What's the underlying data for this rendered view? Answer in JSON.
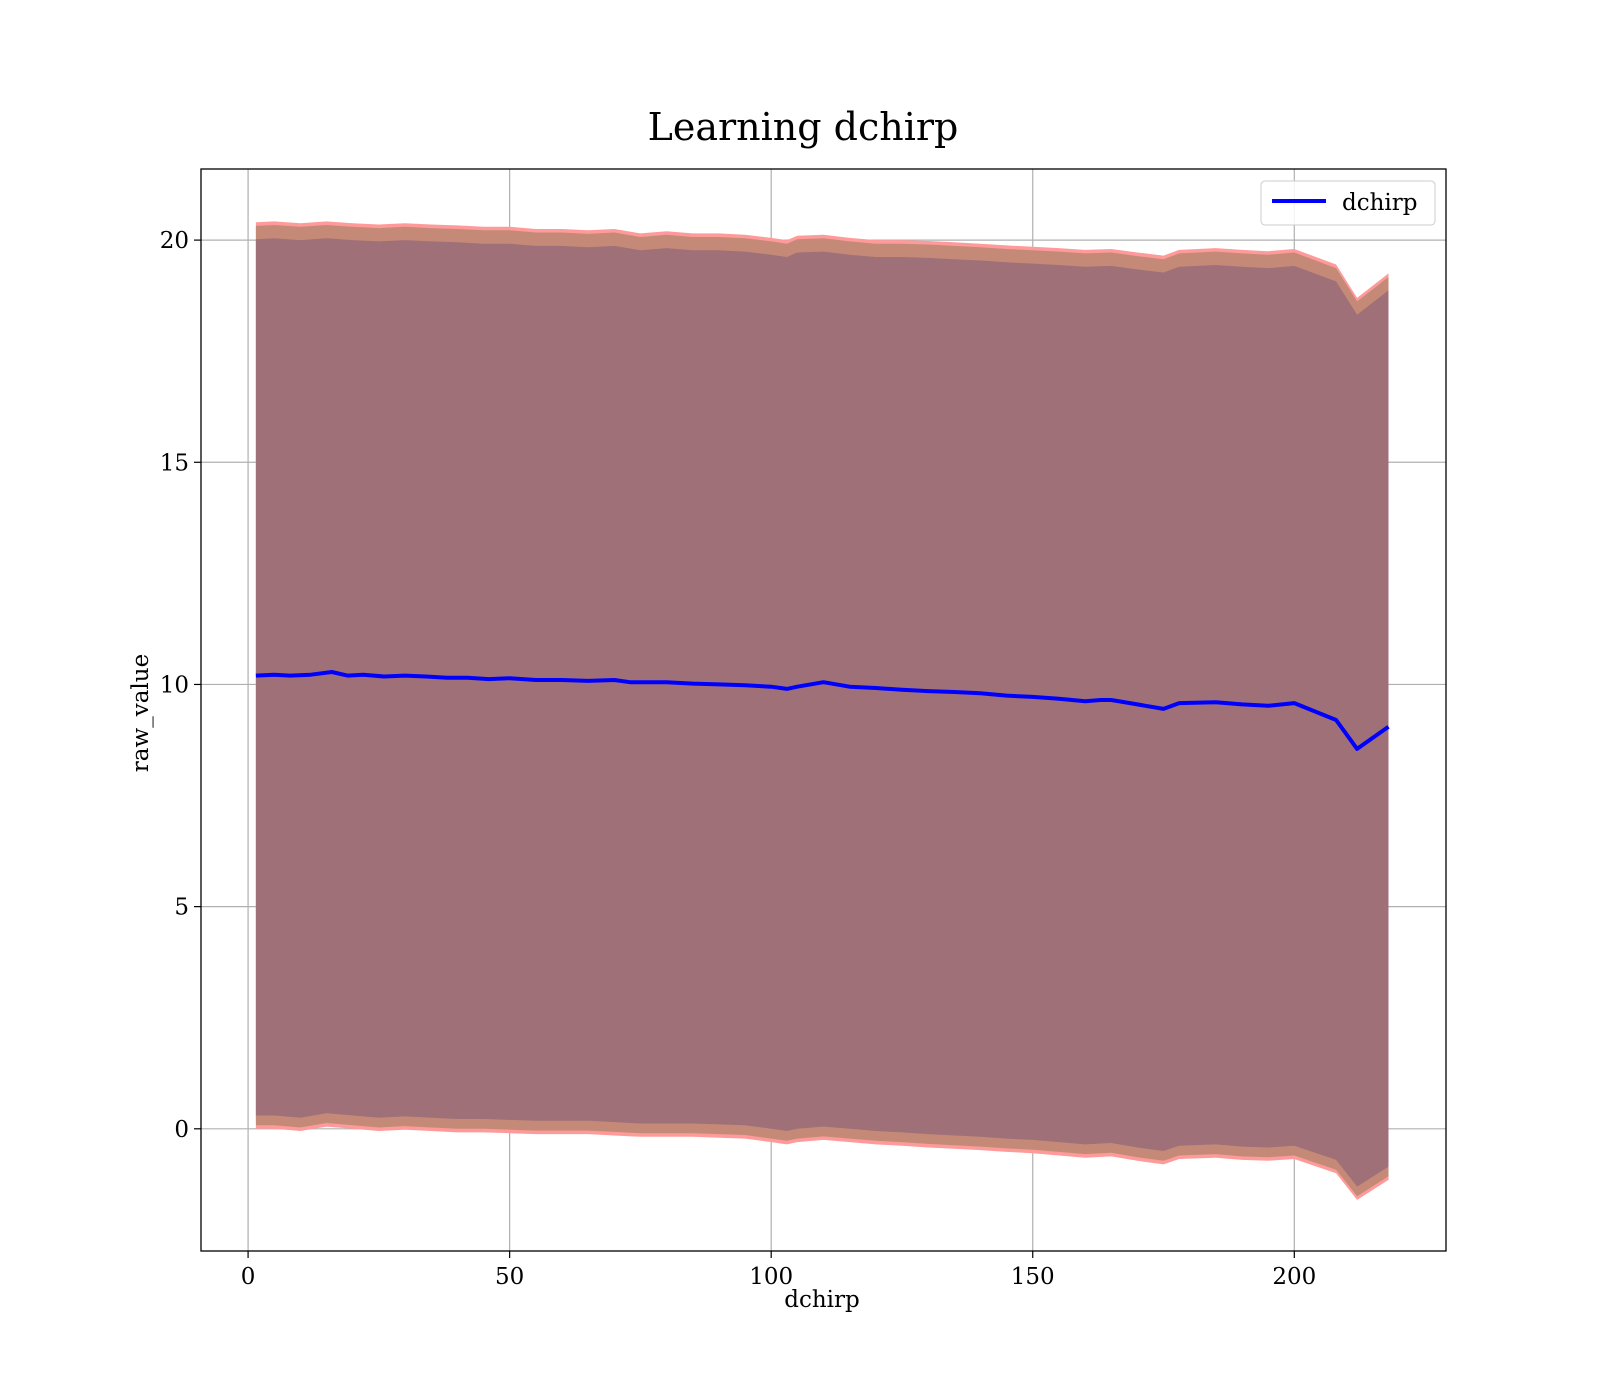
{
  "chart_data": {
    "type": "line",
    "title": "Learning dchirp",
    "xlabel": "dchirp",
    "ylabel": "raw_value",
    "xlim": [
      -9,
      229
    ],
    "ylim": [
      -2.75,
      21.6
    ],
    "grid": true,
    "legend_position": "top-right",
    "xticks": [
      0,
      50,
      100,
      150,
      200
    ],
    "yticks": [
      0,
      5,
      10,
      15,
      20
    ],
    "series": [
      {
        "name": "dchirp",
        "color": "#0000ff",
        "x": [
          1.5,
          5,
          8,
          12,
          16,
          19,
          22,
          26,
          30,
          34,
          38,
          42,
          46,
          50,
          55,
          60,
          65,
          70,
          73,
          75,
          80,
          85,
          90,
          95,
          100,
          103,
          105,
          110,
          115,
          120,
          125,
          130,
          135,
          140,
          145,
          150,
          155,
          160,
          163,
          165,
          170,
          175,
          178,
          185,
          190,
          195,
          200,
          208,
          212,
          218
        ],
        "y": [
          10.2,
          10.22,
          10.2,
          10.22,
          10.28,
          10.2,
          10.22,
          10.18,
          10.2,
          10.18,
          10.15,
          10.15,
          10.12,
          10.14,
          10.1,
          10.1,
          10.08,
          10.1,
          10.05,
          10.05,
          10.05,
          10.02,
          10.0,
          9.98,
          9.95,
          9.9,
          9.95,
          10.05,
          9.95,
          9.92,
          9.88,
          9.85,
          9.83,
          9.8,
          9.75,
          9.72,
          9.68,
          9.62,
          9.65,
          9.65,
          9.55,
          9.45,
          9.58,
          9.6,
          9.55,
          9.52,
          9.58,
          9.2,
          8.55,
          9.05
        ]
      }
    ],
    "bands": [
      {
        "name": "outer",
        "color": "#ff9a9a",
        "x": [
          1.5,
          5,
          10,
          15,
          20,
          25,
          30,
          35,
          40,
          45,
          50,
          55,
          60,
          65,
          70,
          75,
          80,
          85,
          90,
          95,
          100,
          103,
          105,
          110,
          115,
          120,
          125,
          130,
          135,
          140,
          145,
          150,
          155,
          160,
          165,
          170,
          175,
          178,
          185,
          190,
          195,
          200,
          208,
          212,
          218
        ],
        "upper": [
          20.4,
          20.42,
          20.38,
          20.42,
          20.38,
          20.35,
          20.38,
          20.35,
          20.33,
          20.3,
          20.3,
          20.25,
          20.25,
          20.22,
          20.25,
          20.15,
          20.2,
          20.15,
          20.15,
          20.12,
          20.05,
          20.0,
          20.1,
          20.12,
          20.05,
          20.0,
          20.0,
          19.98,
          19.95,
          19.92,
          19.88,
          19.85,
          19.82,
          19.78,
          19.8,
          19.72,
          19.65,
          19.78,
          19.82,
          19.78,
          19.75,
          19.8,
          19.45,
          18.7,
          19.25
        ],
        "lower": [
          0.0,
          0.0,
          -0.05,
          0.05,
          0.0,
          -0.05,
          -0.02,
          -0.05,
          -0.08,
          -0.08,
          -0.1,
          -0.12,
          -0.12,
          -0.12,
          -0.15,
          -0.18,
          -0.18,
          -0.18,
          -0.2,
          -0.22,
          -0.3,
          -0.35,
          -0.3,
          -0.25,
          -0.3,
          -0.35,
          -0.38,
          -0.42,
          -0.45,
          -0.48,
          -0.52,
          -0.55,
          -0.6,
          -0.65,
          -0.62,
          -0.72,
          -0.8,
          -0.68,
          -0.65,
          -0.7,
          -0.72,
          -0.68,
          -1.0,
          -1.6,
          -1.15
        ]
      },
      {
        "name": "middle",
        "color": "#c58a77",
        "x": [
          1.5,
          5,
          10,
          15,
          20,
          25,
          30,
          35,
          40,
          45,
          50,
          55,
          60,
          65,
          70,
          75,
          80,
          85,
          90,
          95,
          100,
          103,
          105,
          110,
          115,
          120,
          125,
          130,
          135,
          140,
          145,
          150,
          155,
          160,
          165,
          170,
          175,
          178,
          185,
          190,
          195,
          200,
          208,
          212,
          218
        ],
        "upper": [
          20.32,
          20.34,
          20.3,
          20.34,
          20.3,
          20.27,
          20.3,
          20.27,
          20.25,
          20.22,
          20.22,
          20.17,
          20.17,
          20.14,
          20.17,
          20.07,
          20.12,
          20.07,
          20.07,
          20.04,
          19.97,
          19.92,
          20.02,
          20.04,
          19.97,
          19.92,
          19.92,
          19.9,
          19.87,
          19.84,
          19.8,
          19.77,
          19.74,
          19.7,
          19.72,
          19.64,
          19.57,
          19.7,
          19.74,
          19.7,
          19.67,
          19.72,
          19.37,
          18.62,
          19.17
        ],
        "lower": [
          0.08,
          0.08,
          0.03,
          0.13,
          0.08,
          0.03,
          0.06,
          0.03,
          0.0,
          0.0,
          -0.02,
          -0.04,
          -0.04,
          -0.04,
          -0.07,
          -0.1,
          -0.1,
          -0.1,
          -0.12,
          -0.14,
          -0.22,
          -0.27,
          -0.22,
          -0.17,
          -0.22,
          -0.27,
          -0.3,
          -0.34,
          -0.37,
          -0.4,
          -0.44,
          -0.47,
          -0.52,
          -0.57,
          -0.54,
          -0.64,
          -0.72,
          -0.6,
          -0.57,
          -0.62,
          -0.64,
          -0.6,
          -0.92,
          -1.52,
          -1.07
        ]
      },
      {
        "name": "inner",
        "color": "#a07079",
        "x": [
          1.5,
          5,
          10,
          15,
          20,
          25,
          30,
          35,
          40,
          45,
          50,
          55,
          60,
          65,
          70,
          75,
          80,
          85,
          90,
          95,
          100,
          103,
          105,
          110,
          115,
          120,
          125,
          130,
          135,
          140,
          145,
          150,
          155,
          160,
          165,
          170,
          175,
          178,
          185,
          190,
          195,
          200,
          208,
          212,
          218
        ],
        "upper": [
          20.02,
          20.04,
          20.0,
          20.04,
          20.0,
          19.97,
          20.0,
          19.97,
          19.95,
          19.92,
          19.92,
          19.87,
          19.87,
          19.84,
          19.87,
          19.77,
          19.82,
          19.77,
          19.77,
          19.74,
          19.67,
          19.62,
          19.72,
          19.74,
          19.67,
          19.62,
          19.62,
          19.6,
          19.57,
          19.54,
          19.5,
          19.47,
          19.44,
          19.4,
          19.42,
          19.34,
          19.27,
          19.4,
          19.44,
          19.4,
          19.37,
          19.42,
          19.07,
          18.32,
          18.87
        ],
        "lower": [
          0.3,
          0.3,
          0.25,
          0.35,
          0.3,
          0.25,
          0.28,
          0.25,
          0.22,
          0.22,
          0.2,
          0.18,
          0.18,
          0.18,
          0.15,
          0.12,
          0.12,
          0.12,
          0.1,
          0.08,
          0.0,
          -0.05,
          0.0,
          0.05,
          0.0,
          -0.05,
          -0.08,
          -0.12,
          -0.15,
          -0.18,
          -0.22,
          -0.25,
          -0.3,
          -0.35,
          -0.32,
          -0.42,
          -0.5,
          -0.38,
          -0.35,
          -0.4,
          -0.42,
          -0.38,
          -0.7,
          -1.3,
          -0.85
        ]
      }
    ]
  }
}
